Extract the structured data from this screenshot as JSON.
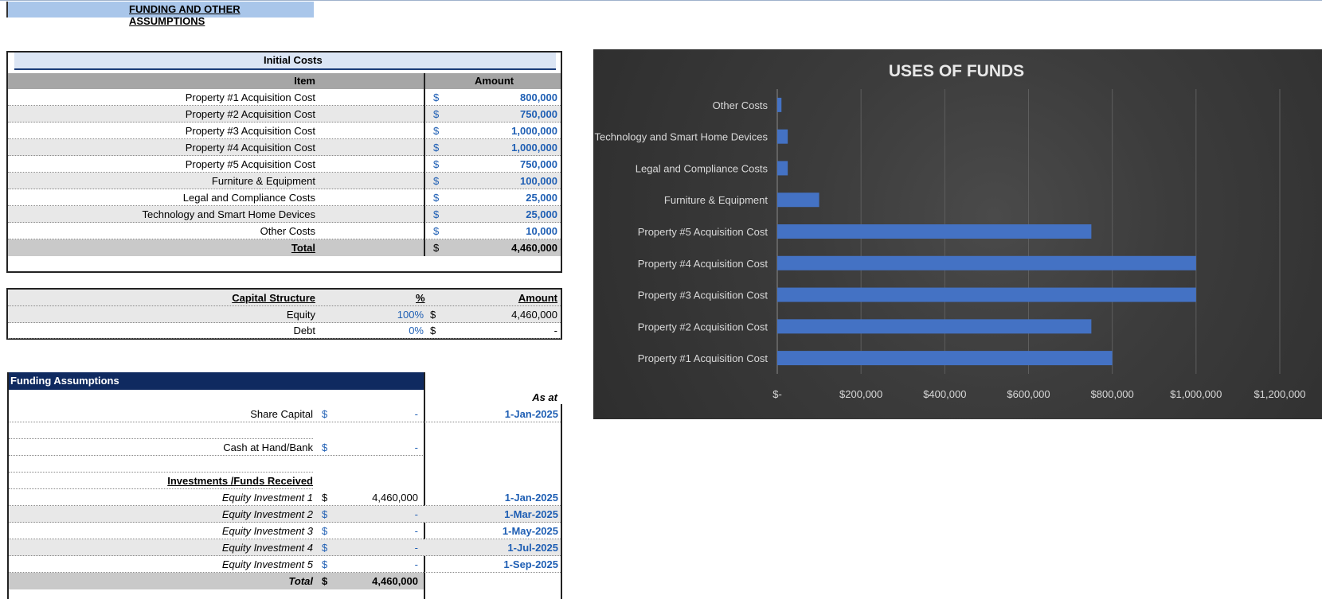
{
  "sheet_title": "FUNDING AND OTHER ASSUMPTIONS",
  "initial_costs": {
    "title": "Initial Costs",
    "col_item": "Item",
    "col_amount": "Amount",
    "currency": "$",
    "rows": [
      {
        "item": "Property #1 Acquisition Cost",
        "amount": "800,000"
      },
      {
        "item": "Property #2 Acquisition Cost",
        "amount": "750,000"
      },
      {
        "item": "Property #3 Acquisition Cost",
        "amount": "1,000,000"
      },
      {
        "item": "Property #4 Acquisition Cost",
        "amount": "1,000,000"
      },
      {
        "item": "Property #5 Acquisition Cost",
        "amount": "750,000"
      },
      {
        "item": "Furniture & Equipment",
        "amount": "100,000"
      },
      {
        "item": "Legal and Compliance Costs",
        "amount": "25,000"
      },
      {
        "item": "Technology and Smart Home Devices",
        "amount": "25,000"
      },
      {
        "item": "Other Costs",
        "amount": "10,000"
      }
    ],
    "total_label": "Total",
    "total_amount": "4,460,000"
  },
  "capital_structure": {
    "title": "Capital Structure",
    "col_pct": "%",
    "col_amount": "Amount",
    "rows": [
      {
        "label": "Equity",
        "pct": "100%",
        "cur": "$",
        "amount": "4,460,000"
      },
      {
        "label": "Debt",
        "pct": "0%",
        "cur": "$",
        "amount": "-"
      }
    ]
  },
  "funding": {
    "title": "Funding Assumptions",
    "as_at_label": "As at",
    "share_capital": {
      "label": "Share Capital",
      "cur": "$",
      "amount": "-",
      "date": "1-Jan-2025"
    },
    "cash": {
      "label": "Cash at Hand/Bank",
      "cur": "$",
      "amount": "-"
    },
    "investments_title": "Investments /Funds Received",
    "investments": [
      {
        "label": "Equity Investment 1",
        "cur": "$",
        "amount": "4,460,000",
        "date": "1-Jan-2025"
      },
      {
        "label": "Equity Investment 2",
        "cur": "$",
        "amount": "-",
        "date": "1-Mar-2025"
      },
      {
        "label": "Equity Investment 3",
        "cur": "$",
        "amount": "-",
        "date": "1-May-2025"
      },
      {
        "label": "Equity Investment 4",
        "cur": "$",
        "amount": "-",
        "date": "1-Jul-2025"
      },
      {
        "label": "Equity Investment 5",
        "cur": "$",
        "amount": "-",
        "date": "1-Sep-2025"
      }
    ],
    "total_label": "Total",
    "total_cur": "$",
    "total_amount": "4,460,000"
  },
  "chart_data": {
    "type": "bar",
    "orientation": "horizontal",
    "title": "USES OF FUNDS",
    "categories": [
      "Property #1 Acquisition Cost",
      "Property #2 Acquisition Cost",
      "Property #3 Acquisition Cost",
      "Property #4 Acquisition Cost",
      "Property #5 Acquisition Cost",
      "Furniture & Equipment",
      "Legal and Compliance Costs",
      "Technology and Smart Home Devices",
      "Other Costs"
    ],
    "values": [
      800000,
      750000,
      1000000,
      1000000,
      750000,
      100000,
      25000,
      25000,
      10000
    ],
    "xlim": [
      0,
      1200000
    ],
    "xticks": [
      0,
      200000,
      400000,
      600000,
      800000,
      1000000,
      1200000
    ],
    "xtick_labels": [
      "$-",
      "$200,000",
      "$400,000",
      "$600,000",
      "$800,000",
      "$1,000,000",
      "$1,200,000"
    ],
    "bar_color": "#4472c4",
    "grid": true
  }
}
